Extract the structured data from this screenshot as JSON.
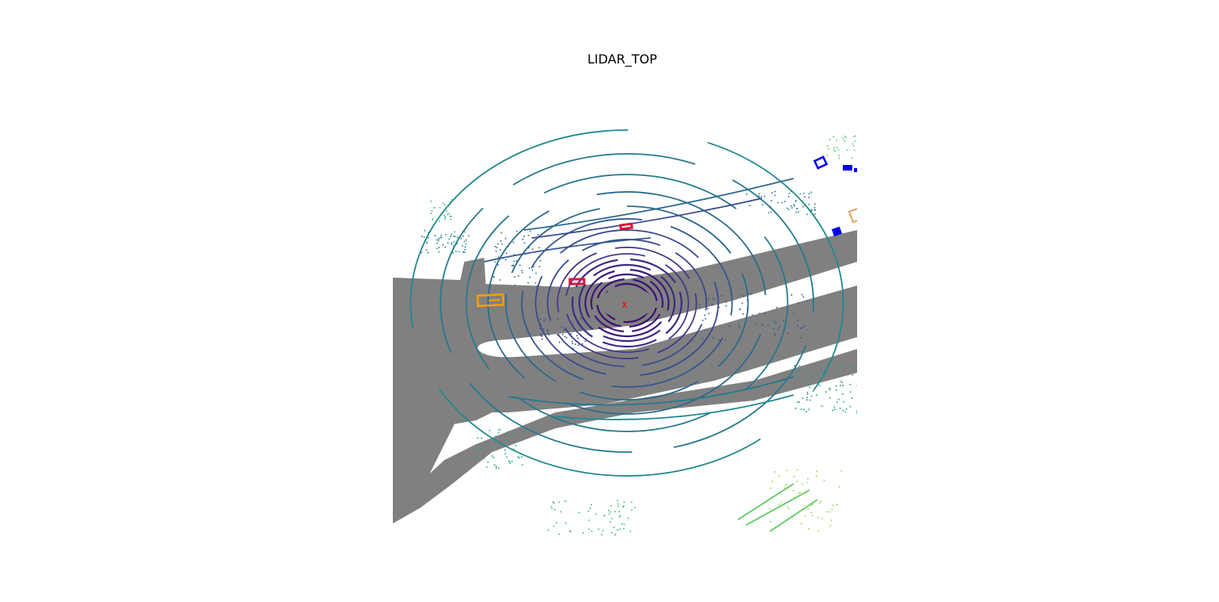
{
  "title": "LIDAR_TOP",
  "colors": {
    "drivable_area": "#808080",
    "ego_marker": "#ff0000",
    "ring_colors": [
      "#3b0f70",
      "#3e1a7a",
      "#402a84",
      "#3f3a8a",
      "#3a4a8c",
      "#335a8d",
      "#2c6a8e",
      "#27798e",
      "#21898d",
      "#1f988b",
      "#25a983",
      "#3bba76",
      "#5fc963",
      "#8fd744"
    ],
    "box_car_red": "#dc143c",
    "box_orange": "#ff9e00",
    "box_blue": "#0000e6",
    "box_peach": "#e0a060"
  },
  "objects": [
    {
      "name": "car-box-1",
      "category": "car",
      "color": "#dc143c"
    },
    {
      "name": "car-box-2",
      "category": "car",
      "color": "#dc143c"
    },
    {
      "name": "truck-box",
      "category": "vehicle",
      "color": "#ff9e00"
    },
    {
      "name": "pedestrian-box-1",
      "category": "pedestrian",
      "color": "#0000e6"
    },
    {
      "name": "pedestrian-box-2",
      "category": "pedestrian",
      "color": "#0000e6"
    },
    {
      "name": "pedestrian-box-3",
      "category": "pedestrian",
      "color": "#0000e6"
    },
    {
      "name": "barrier-box",
      "category": "barrier",
      "color": "#e0a060"
    }
  ]
}
